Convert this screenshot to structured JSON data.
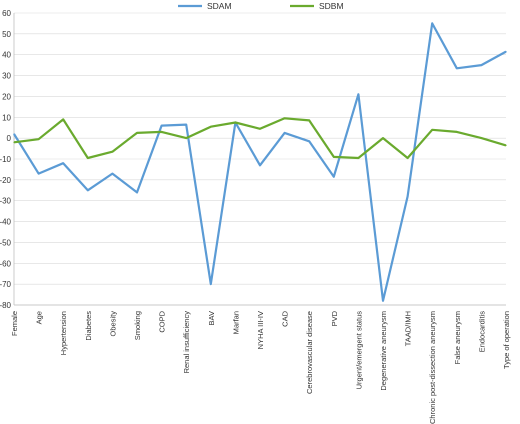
{
  "chart_data": {
    "type": "line",
    "categories": [
      "Female",
      "Age",
      "Hypertension",
      "Diabetes",
      "Obesity",
      "Smoking",
      "COPD",
      "Renal insufficiency",
      "BAV",
      "Marfan",
      "NYHA III-IV",
      "CAD",
      "Cerebrovascular disease",
      "PVD",
      "Urgent/emergent status",
      "Degenerative aneurysm",
      "TAAD/IMH",
      "Chronic post-dissection aneurysm",
      "False aneurysm",
      "Endocarditis",
      "Type of operation"
    ],
    "series": [
      {
        "name": "SDAM",
        "color": "#5b9bd5",
        "values": [
          2,
          -17,
          -12,
          -25,
          -17,
          -26,
          6,
          6.5,
          -70,
          7.5,
          -13,
          2.5,
          -1.5,
          -18.5,
          21,
          -78,
          -28,
          55,
          33.5,
          35,
          41.5
        ]
      },
      {
        "name": "SDBM",
        "color": "#6aaa2e",
        "values": [
          -2,
          -0.5,
          9,
          -9.5,
          -6.5,
          2.5,
          3,
          0,
          5.5,
          7.5,
          4.5,
          9.5,
          8.5,
          -9,
          -9.5,
          0,
          -9.5,
          4,
          3,
          0,
          -3.5
        ]
      }
    ],
    "ylim": [
      -80,
      60
    ],
    "yticks": [
      "60",
      "50",
      "40",
      "30",
      "20",
      "10",
      "0",
      "-10",
      "-20",
      "-30",
      "-40",
      "-50",
      "-60",
      "-70",
      "-80"
    ],
    "grid": true,
    "legend_position": "top"
  }
}
